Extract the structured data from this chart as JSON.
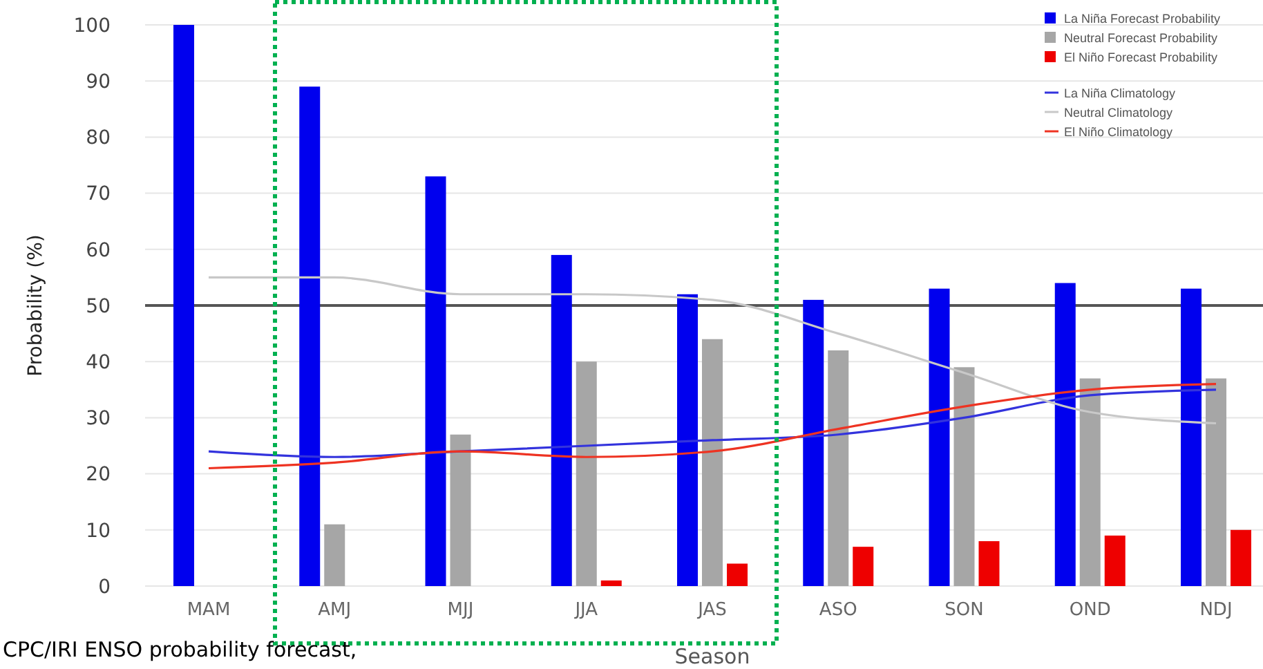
{
  "chart_data": {
    "type": "bar",
    "xlabel": "Season",
    "ylabel": "Probability (%)",
    "categories": [
      "MAM",
      "AMJ",
      "MJJ",
      "JJA",
      "JAS",
      "ASO",
      "SON",
      "OND",
      "NDJ"
    ],
    "series": [
      {
        "name": "La Niña Forecast Probability",
        "color": "#0000ee",
        "values": [
          100,
          89,
          73,
          59,
          52,
          51,
          53,
          54,
          53
        ]
      },
      {
        "name": "Neutral Forecast Probability",
        "color": "#a6a6a6",
        "values": [
          0,
          11,
          27,
          40,
          44,
          42,
          39,
          37,
          37
        ]
      },
      {
        "name": "El Niño Forecast Probability",
        "color": "#ee0000",
        "values": [
          0,
          0,
          0,
          1,
          4,
          7,
          8,
          9,
          10
        ]
      },
      {
        "type": "line",
        "name": "La Niña Climatology",
        "color": "#3333dd",
        "values": [
          24,
          23,
          24,
          25,
          26,
          27,
          30,
          34,
          35
        ]
      },
      {
        "type": "line",
        "name": "Neutral Climatology",
        "color": "#c8c8c8",
        "values": [
          55,
          55,
          52,
          52,
          51,
          45,
          38,
          31,
          29
        ]
      },
      {
        "type": "line",
        "name": "El Niño Climatology",
        "color": "#ee3322",
        "values": [
          21,
          22,
          24,
          23,
          24,
          28,
          32,
          35,
          36
        ]
      }
    ],
    "ylim": [
      0,
      100
    ],
    "yticks": [
      0,
      10,
      20,
      30,
      40,
      50,
      60,
      70,
      80,
      90,
      100
    ],
    "grid": "y",
    "legend": "top right",
    "ref_lines": [
      {
        "axis": "y",
        "value": 50,
        "color": "#555555"
      }
    ],
    "annotations": [
      "CPC/IRI ENSO probability forecast,"
    ]
  }
}
